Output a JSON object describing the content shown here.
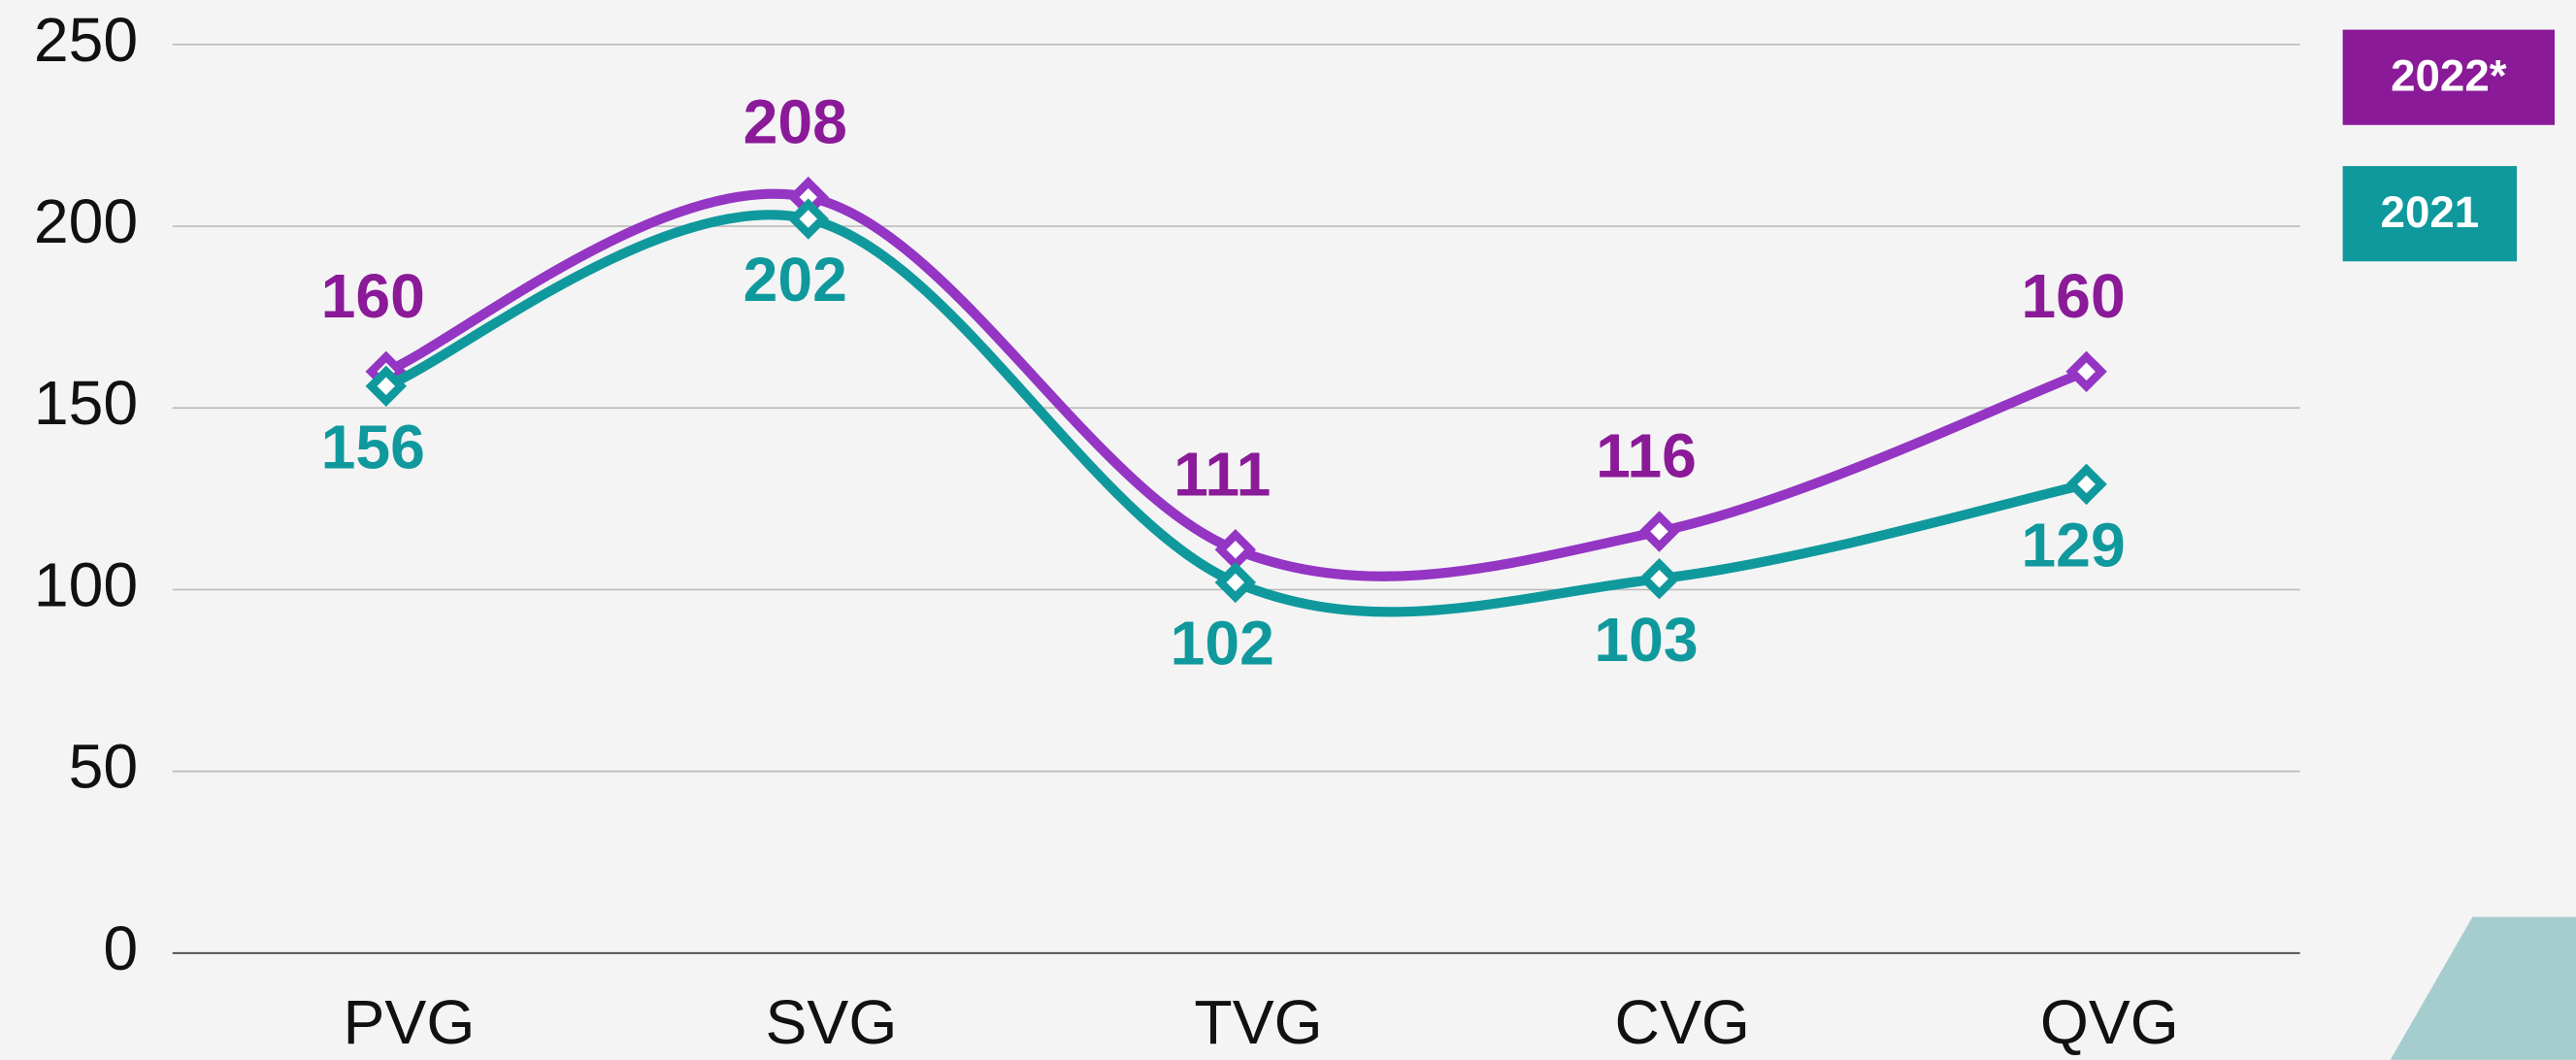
{
  "chart_data": {
    "type": "line",
    "categories": [
      "PVG",
      "SVG",
      "TVG",
      "CVG",
      "QVG"
    ],
    "series": [
      {
        "name": "2022*",
        "color": "#9435c4",
        "legend_color": "#8a1a98",
        "values": [
          160,
          208,
          111,
          116,
          160
        ]
      },
      {
        "name": "2021",
        "color": "#10999d",
        "legend_color": "#10999d",
        "values": [
          156,
          202,
          102,
          103,
          129
        ]
      }
    ],
    "ylim": [
      0,
      250
    ],
    "yticks": [
      0,
      50,
      100,
      150,
      200,
      250
    ],
    "grid": true,
    "smooth": true,
    "legend": "upper right"
  }
}
